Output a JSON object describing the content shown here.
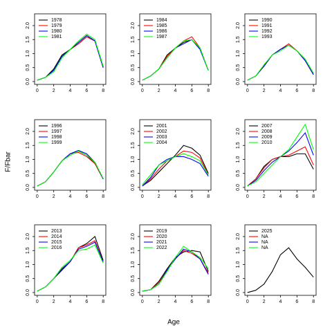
{
  "xlabel": "Age",
  "ylabel": "F/Fbar",
  "chart_data": [
    {
      "type": "line",
      "x": [
        0,
        1,
        2,
        3,
        4,
        5,
        6,
        7,
        8
      ],
      "xlim": [
        -0.32,
        8.32
      ],
      "xticks": [
        0,
        2,
        4,
        6,
        8
      ],
      "ylim": [
        -0.1,
        2.42
      ],
      "yticks": [
        {
          "value": 0,
          "label": "0.0"
        },
        {
          "value": 0.5,
          "label": "0.5"
        },
        {
          "value": 1,
          "label": "1.0"
        },
        {
          "value": 1.5,
          "label": "1.5"
        },
        {
          "value": 2,
          "label": "2.0"
        }
      ],
      "series": [
        {
          "name": "1978",
          "color": "#000000",
          "values": [
            0.05,
            0.15,
            0.45,
            0.95,
            1.15,
            1.35,
            1.6,
            1.45,
            0.5
          ]
        },
        {
          "name": "1979",
          "color": "#ff0000",
          "values": [
            0.05,
            0.15,
            0.4,
            0.9,
            1.15,
            1.35,
            1.6,
            1.45,
            0.5
          ]
        },
        {
          "name": "1980",
          "color": "#0000ff",
          "values": [
            0.05,
            0.15,
            0.4,
            0.9,
            1.15,
            1.4,
            1.65,
            1.45,
            0.5
          ]
        },
        {
          "name": "1981",
          "color": "#00ff00",
          "values": [
            0.05,
            0.15,
            0.35,
            0.85,
            1.15,
            1.45,
            1.7,
            1.5,
            0.55
          ]
        }
      ]
    },
    {
      "type": "line",
      "x": [
        0,
        1,
        2,
        3,
        4,
        5,
        6,
        7,
        8
      ],
      "xlim": [
        -0.32,
        8.32
      ],
      "xticks": [
        0,
        2,
        4,
        6,
        8
      ],
      "ylim": [
        -0.1,
        2.42
      ],
      "yticks": [
        {
          "value": 0,
          "label": "0.0"
        },
        {
          "value": 0.5,
          "label": "0.5"
        },
        {
          "value": 1,
          "label": "1.0"
        },
        {
          "value": 1.5,
          "label": "1.5"
        },
        {
          "value": 2,
          "label": "2.0"
        }
      ],
      "series": [
        {
          "name": "1984",
          "color": "#000000",
          "values": [
            0.05,
            0.2,
            0.45,
            0.95,
            1.2,
            1.4,
            1.5,
            1.15,
            0.4
          ]
        },
        {
          "name": "1985",
          "color": "#ff0000",
          "values": [
            0.05,
            0.2,
            0.45,
            0.9,
            1.2,
            1.45,
            1.6,
            1.2,
            0.4
          ]
        },
        {
          "name": "1986",
          "color": "#0000ff",
          "values": [
            0.05,
            0.2,
            0.45,
            0.85,
            1.2,
            1.35,
            1.5,
            1.15,
            0.4
          ]
        },
        {
          "name": "1987",
          "color": "#00ff00",
          "values": [
            0.05,
            0.2,
            0.45,
            0.85,
            1.2,
            1.45,
            1.5,
            1.2,
            0.4
          ]
        }
      ]
    },
    {
      "type": "line",
      "x": [
        0,
        1,
        2,
        3,
        4,
        5,
        6,
        7,
        8
      ],
      "xlim": [
        -0.32,
        8.32
      ],
      "xticks": [
        0,
        2,
        4,
        6,
        8
      ],
      "ylim": [
        -0.1,
        2.42
      ],
      "yticks": [
        {
          "value": 0,
          "label": "0.0"
        },
        {
          "value": 0.5,
          "label": "0.5"
        },
        {
          "value": 1,
          "label": "1.0"
        },
        {
          "value": 1.5,
          "label": "1.5"
        },
        {
          "value": 2,
          "label": "2.0"
        }
      ],
      "series": [
        {
          "name": "1990",
          "color": "#000000",
          "values": [
            0.05,
            0.2,
            0.55,
            0.95,
            1.15,
            1.3,
            1.1,
            0.75,
            0.25
          ]
        },
        {
          "name": "1991",
          "color": "#ff0000",
          "values": [
            0.05,
            0.2,
            0.55,
            0.95,
            1.15,
            1.35,
            1.1,
            0.75,
            0.25
          ]
        },
        {
          "name": "1992",
          "color": "#0000ff",
          "values": [
            0.05,
            0.2,
            0.55,
            0.95,
            1.15,
            1.3,
            1.1,
            0.75,
            0.25
          ]
        },
        {
          "name": "1993",
          "color": "#00ff00",
          "values": [
            0.05,
            0.2,
            0.6,
            0.95,
            1.1,
            1.3,
            1.1,
            0.8,
            0.3
          ]
        }
      ]
    },
    {
      "type": "line",
      "x": [
        0,
        1,
        2,
        3,
        4,
        5,
        6,
        7,
        8
      ],
      "xlim": [
        -0.32,
        8.32
      ],
      "xticks": [
        0,
        2,
        4,
        6,
        8
      ],
      "ylim": [
        -0.1,
        2.42
      ],
      "yticks": [
        {
          "value": 0,
          "label": "0.0"
        },
        {
          "value": 0.5,
          "label": "0.5"
        },
        {
          "value": 1,
          "label": "1.0"
        },
        {
          "value": 1.5,
          "label": "1.5"
        },
        {
          "value": 2,
          "label": "2.0"
        }
      ],
      "series": [
        {
          "name": "1996",
          "color": "#000000",
          "values": [
            0.05,
            0.2,
            0.55,
            0.95,
            1.2,
            1.3,
            1.15,
            0.85,
            0.3
          ]
        },
        {
          "name": "1997",
          "color": "#ff0000",
          "values": [
            0.05,
            0.2,
            0.55,
            0.95,
            1.2,
            1.25,
            1.1,
            0.85,
            0.3
          ]
        },
        {
          "name": "1998",
          "color": "#0000ff",
          "values": [
            0.05,
            0.2,
            0.55,
            0.95,
            1.2,
            1.32,
            1.2,
            0.9,
            0.3
          ]
        },
        {
          "name": "1999",
          "color": "#00ff00",
          "values": [
            0.05,
            0.2,
            0.55,
            0.95,
            1.15,
            1.3,
            1.15,
            0.9,
            0.32
          ]
        }
      ]
    },
    {
      "type": "line",
      "x": [
        0,
        1,
        2,
        3,
        4,
        5,
        6,
        7,
        8
      ],
      "xlim": [
        -0.32,
        8.32
      ],
      "xticks": [
        0,
        2,
        4,
        6,
        8
      ],
      "ylim": [
        -0.1,
        2.42
      ],
      "yticks": [
        {
          "value": 0,
          "label": "0.0"
        },
        {
          "value": 0.5,
          "label": "0.5"
        },
        {
          "value": 1,
          "label": "1.0"
        },
        {
          "value": 1.5,
          "label": "1.5"
        },
        {
          "value": 2,
          "label": "2.0"
        }
      ],
      "series": [
        {
          "name": "2001",
          "color": "#000000",
          "values": [
            0.05,
            0.25,
            0.55,
            0.85,
            1.15,
            1.5,
            1.4,
            1.15,
            0.5
          ]
        },
        {
          "name": "2002",
          "color": "#ff0000",
          "values": [
            0.05,
            0.3,
            0.65,
            0.95,
            1.1,
            1.3,
            1.25,
            1.05,
            0.45
          ]
        },
        {
          "name": "2003",
          "color": "#0000ff",
          "values": [
            0.05,
            0.35,
            0.8,
            1.0,
            1.1,
            1.1,
            1.0,
            0.85,
            0.4
          ]
        },
        {
          "name": "2004",
          "color": "#00ff00",
          "values": [
            0.1,
            0.45,
            0.8,
            0.95,
            1.1,
            1.2,
            1.1,
            0.95,
            0.45
          ]
        }
      ]
    },
    {
      "type": "line",
      "x": [
        0,
        1,
        2,
        3,
        4,
        5,
        6,
        7,
        8
      ],
      "xlim": [
        -0.32,
        8.32
      ],
      "xticks": [
        0,
        2,
        4,
        6,
        8
      ],
      "ylim": [
        -0.1,
        2.42
      ],
      "yticks": [
        {
          "value": 0,
          "label": "0.0"
        },
        {
          "value": 0.5,
          "label": "0.5"
        },
        {
          "value": 1,
          "label": "1.0"
        },
        {
          "value": 1.5,
          "label": "1.5"
        },
        {
          "value": 2,
          "label": "2.0"
        }
      ],
      "series": [
        {
          "name": "2007",
          "color": "#000000",
          "values": [
            0.05,
            0.3,
            0.75,
            1.0,
            1.1,
            1.1,
            1.2,
            1.2,
            0.65
          ]
        },
        {
          "name": "2008",
          "color": "#ff0000",
          "values": [
            0.05,
            0.3,
            0.7,
            1.0,
            1.1,
            1.15,
            1.3,
            1.45,
            0.8
          ]
        },
        {
          "name": "2009",
          "color": "#0000ff",
          "values": [
            0.05,
            0.25,
            0.6,
            0.9,
            1.1,
            1.3,
            1.6,
            1.95,
            1.15
          ]
        },
        {
          "name": "2010",
          "color": "#00ff00",
          "values": [
            0.05,
            0.2,
            0.5,
            0.8,
            1.1,
            1.35,
            1.8,
            2.25,
            1.35
          ]
        }
      ]
    },
    {
      "type": "line",
      "x": [
        0,
        1,
        2,
        3,
        4,
        5,
        6,
        7,
        8
      ],
      "xlim": [
        -0.32,
        8.32
      ],
      "xticks": [
        0,
        2,
        4,
        6,
        8
      ],
      "ylim": [
        -0.1,
        2.42
      ],
      "yticks": [
        {
          "value": 0,
          "label": "0.0"
        },
        {
          "value": 0.5,
          "label": "0.5"
        },
        {
          "value": 1,
          "label": "1.0"
        },
        {
          "value": 1.5,
          "label": "1.5"
        },
        {
          "value": 2,
          "label": "2.0"
        }
      ],
      "series": [
        {
          "name": "2013",
          "color": "#000000",
          "values": [
            0.05,
            0.2,
            0.5,
            0.8,
            1.1,
            1.6,
            1.75,
            2.0,
            1.15
          ]
        },
        {
          "name": "2014",
          "color": "#ff0000",
          "values": [
            0.05,
            0.2,
            0.5,
            0.85,
            1.1,
            1.6,
            1.7,
            1.85,
            1.1
          ]
        },
        {
          "name": "2015",
          "color": "#0000ff",
          "values": [
            0.05,
            0.2,
            0.5,
            0.85,
            1.1,
            1.55,
            1.65,
            1.8,
            1.1
          ]
        },
        {
          "name": "2016",
          "color": "#00ff00",
          "values": [
            0.05,
            0.2,
            0.5,
            0.9,
            1.15,
            1.5,
            1.55,
            1.7,
            1.05
          ]
        }
      ]
    },
    {
      "type": "line",
      "x": [
        0,
        1,
        2,
        3,
        4,
        5,
        6,
        7,
        8
      ],
      "xlim": [
        -0.32,
        8.32
      ],
      "xticks": [
        0,
        2,
        4,
        6,
        8
      ],
      "ylim": [
        -0.1,
        2.42
      ],
      "yticks": [
        {
          "value": 0,
          "label": "0.0"
        },
        {
          "value": 0.5,
          "label": "0.5"
        },
        {
          "value": 1,
          "label": "1.0"
        },
        {
          "value": 1.5,
          "label": "1.5"
        },
        {
          "value": 2,
          "label": "2.0"
        }
      ],
      "series": [
        {
          "name": "2019",
          "color": "#000000",
          "values": [
            0.05,
            0.1,
            0.4,
            0.85,
            1.25,
            1.45,
            1.5,
            1.45,
            0.75
          ]
        },
        {
          "name": "2020",
          "color": "#ff0000",
          "values": [
            0.05,
            0.1,
            0.35,
            0.8,
            1.2,
            1.5,
            1.4,
            1.2,
            0.7
          ]
        },
        {
          "name": "2021",
          "color": "#0000ff",
          "values": [
            0.05,
            0.1,
            0.3,
            0.8,
            1.2,
            1.55,
            1.45,
            1.2,
            0.65
          ]
        },
        {
          "name": "2022",
          "color": "#00ff00",
          "values": [
            0.05,
            0.1,
            0.3,
            0.75,
            1.25,
            1.65,
            1.45,
            1.25,
            0.85
          ]
        }
      ]
    },
    {
      "type": "line",
      "x": [
        0,
        1,
        2,
        3,
        4,
        5,
        6,
        7,
        8
      ],
      "xlim": [
        -0.32,
        8.32
      ],
      "xticks": [
        0,
        2,
        4,
        6,
        8
      ],
      "ylim": [
        -0.1,
        2.42
      ],
      "yticks": [
        {
          "value": 0,
          "label": "0.0"
        },
        {
          "value": 0.5,
          "label": "0.5"
        },
        {
          "value": 1,
          "label": "1.0"
        },
        {
          "value": 1.5,
          "label": "1.5"
        },
        {
          "value": 2,
          "label": "2.0"
        }
      ],
      "series": [
        {
          "name": "2025",
          "color": "#000000",
          "values": [
            0.0,
            0.08,
            0.3,
            0.75,
            1.35,
            1.6,
            1.2,
            0.9,
            0.55
          ]
        },
        {
          "name": "NA",
          "color": "#ff0000",
          "values": [
            null,
            null,
            null,
            null,
            null,
            null,
            null,
            null,
            null
          ]
        },
        {
          "name": "NA",
          "color": "#0000ff",
          "values": [
            null,
            null,
            null,
            null,
            null,
            null,
            null,
            null,
            null
          ]
        },
        {
          "name": "NA",
          "color": "#00ff00",
          "values": [
            null,
            null,
            null,
            null,
            null,
            null,
            null,
            null,
            null
          ]
        }
      ]
    }
  ]
}
